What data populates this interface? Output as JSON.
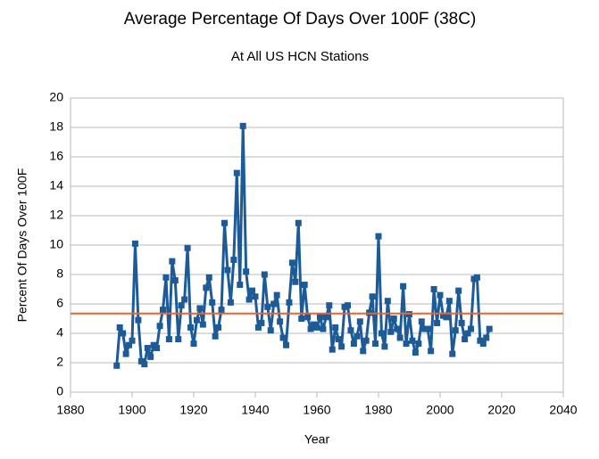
{
  "chart_data": {
    "type": "line",
    "title": "Average Percentage Of Days Over 100F (38C)",
    "subtitle": "At All US HCN Stations",
    "x_label": "Year",
    "y_label": "Percent Of Days Over 100F",
    "x": [
      1895,
      1896,
      1897,
      1898,
      1899,
      1900,
      1901,
      1902,
      1903,
      1904,
      1905,
      1906,
      1907,
      1908,
      1909,
      1910,
      1911,
      1912,
      1913,
      1914,
      1915,
      1916,
      1917,
      1918,
      1919,
      1920,
      1921,
      1922,
      1923,
      1924,
      1925,
      1926,
      1927,
      1928,
      1929,
      1930,
      1931,
      1932,
      1933,
      1934,
      1935,
      1936,
      1937,
      1938,
      1939,
      1940,
      1941,
      1942,
      1943,
      1944,
      1945,
      1946,
      1947,
      1948,
      1949,
      1950,
      1951,
      1952,
      1953,
      1954,
      1955,
      1956,
      1957,
      1958,
      1959,
      1960,
      1961,
      1962,
      1963,
      1964,
      1965,
      1966,
      1967,
      1968,
      1969,
      1970,
      1971,
      1972,
      1973,
      1974,
      1975,
      1976,
      1977,
      1978,
      1979,
      1980,
      1981,
      1982,
      1983,
      1984,
      1985,
      1986,
      1987,
      1988,
      1989,
      1990,
      1991,
      1992,
      1993,
      1994,
      1995,
      1996,
      1997,
      1998,
      1999,
      2000,
      2001,
      2002,
      2003,
      2004,
      2005,
      2006,
      2007,
      2008,
      2009,
      2010,
      2011,
      2012,
      2013,
      2014,
      2015,
      2016
    ],
    "series": [
      {
        "color": "#1c5b98",
        "values": [
          1.8,
          4.4,
          4.0,
          2.6,
          3.2,
          3.5,
          10.1,
          4.9,
          2.1,
          1.9,
          3.0,
          2.4,
          3.2,
          3.0,
          4.5,
          5.6,
          7.8,
          3.6,
          8.9,
          7.6,
          3.6,
          5.9,
          6.3,
          9.8,
          4.4,
          3.3,
          4.9,
          5.7,
          4.6,
          7.1,
          7.8,
          6.1,
          3.8,
          4.4,
          5.6,
          11.5,
          8.3,
          6.1,
          9.0,
          14.9,
          7.3,
          18.1,
          8.2,
          6.3,
          6.9,
          6.5,
          4.4,
          4.7,
          8.0,
          5.8,
          4.2,
          6.0,
          6.6,
          4.8,
          3.7,
          3.2,
          6.1,
          8.8,
          7.5,
          11.5,
          5.0,
          7.3,
          5.1,
          4.3,
          4.6,
          4.4,
          5.1,
          4.3,
          5.1,
          5.9,
          2.9,
          4.4,
          3.6,
          3.1,
          5.8,
          5.9,
          4.2,
          3.3,
          3.8,
          4.8,
          2.8,
          3.5,
          5.4,
          6.5,
          3.3,
          10.6,
          4.0,
          3.1,
          6.2,
          4.1,
          5.0,
          4.3,
          3.7,
          7.2,
          3.3,
          5.3,
          3.5,
          2.7,
          3.3,
          4.8,
          4.3,
          4.3,
          2.8,
          7.0,
          4.7,
          6.6,
          5.2,
          5.1,
          6.2,
          2.6,
          4.2,
          6.9,
          4.7,
          3.6,
          4.0,
          4.3,
          7.7,
          7.8,
          3.5,
          3.3,
          3.7,
          4.3
        ]
      }
    ],
    "reference_line": {
      "value": 5.35,
      "color": "#f0622c"
    },
    "xlim": [
      1880,
      2040
    ],
    "xticks": [
      1880,
      1900,
      1920,
      1940,
      1960,
      1980,
      2000,
      2020,
      2040
    ],
    "ylim": [
      0,
      20
    ],
    "yticks": [
      0,
      2,
      4,
      6,
      8,
      10,
      12,
      14,
      16,
      18,
      20
    ],
    "grid": true
  }
}
